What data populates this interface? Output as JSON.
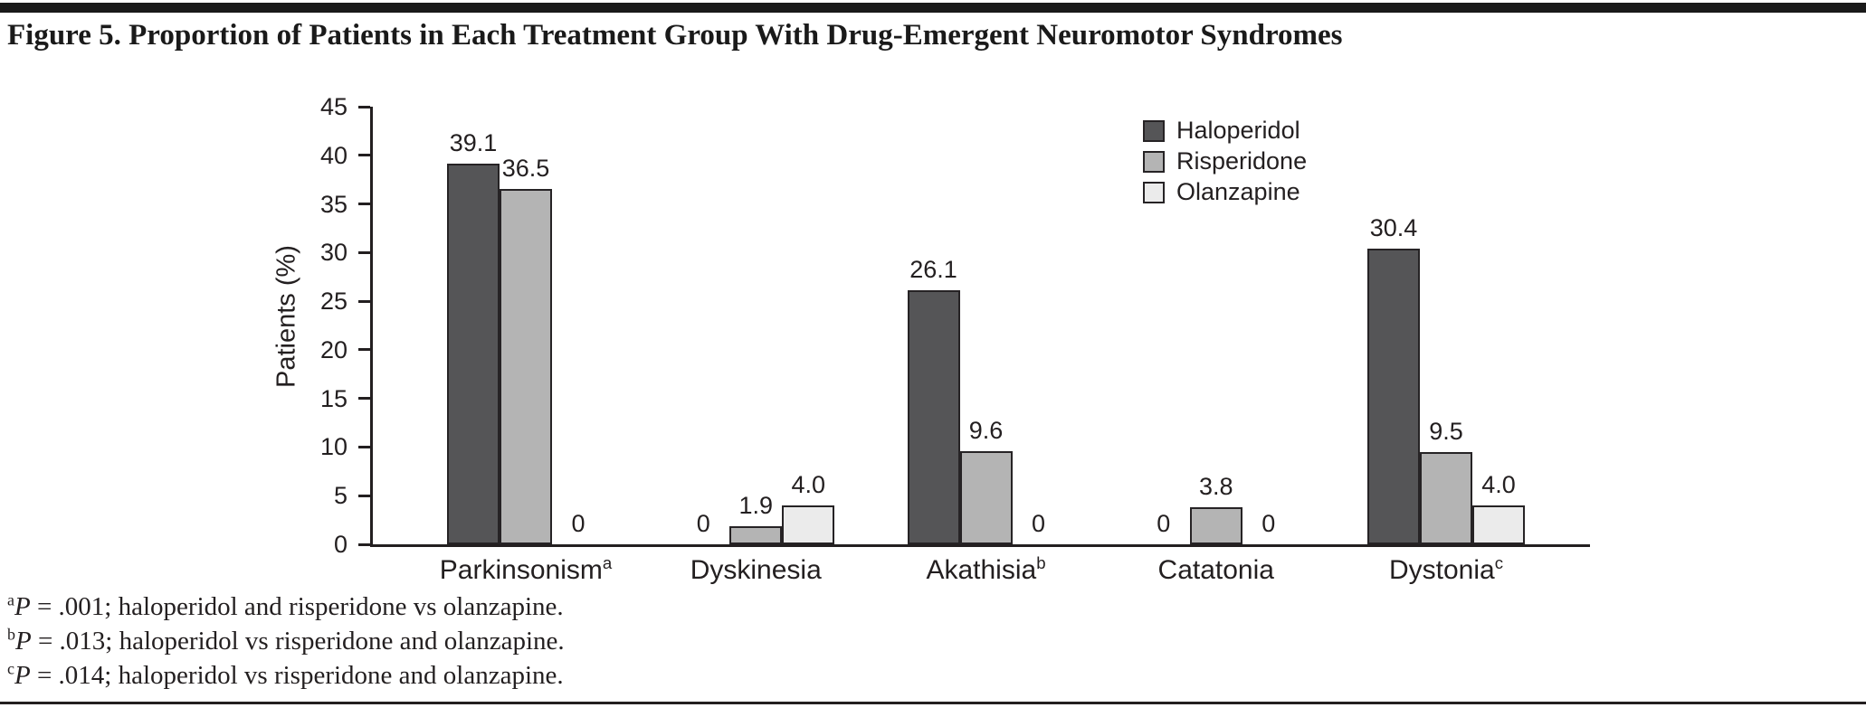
{
  "page": {
    "title": "Figure 5. Proportion of Patients in Each Treatment Group With Drug-Emergent Neuromotor Syndromes"
  },
  "chart_data": {
    "type": "bar",
    "title": "Figure 5. Proportion of Patients in Each Treatment Group With Drug-Emergent Neuromotor Syndromes",
    "xlabel": "",
    "ylabel": "Patients (%)",
    "ylim": [
      0,
      45
    ],
    "yticks": [
      0,
      5,
      10,
      15,
      20,
      25,
      30,
      35,
      40,
      45
    ],
    "grid": false,
    "legend_position": "top-right-inside",
    "categories": [
      {
        "label": "Parkinsonism",
        "sup": "a"
      },
      {
        "label": "Dyskinesia",
        "sup": ""
      },
      {
        "label": "Akathisia",
        "sup": "b"
      },
      {
        "label": "Catatonia",
        "sup": ""
      },
      {
        "label": "Dystonia",
        "sup": "c"
      }
    ],
    "series": [
      {
        "name": "Haloperidol",
        "color": "#555557",
        "values": [
          39.1,
          0,
          26.1,
          0,
          30.4
        ]
      },
      {
        "name": "Risperidone",
        "color": "#b4b4b4",
        "values": [
          36.5,
          1.9,
          9.6,
          3.8,
          9.5
        ]
      },
      {
        "name": "Olanzapine",
        "color": "#ebebeb",
        "values": [
          0,
          4.0,
          0,
          0,
          4.0
        ]
      }
    ]
  },
  "footnotes": [
    {
      "sup": "a",
      "p": "P",
      "rest": " = .001; haloperidol and risperidone vs olanzapine."
    },
    {
      "sup": "b",
      "p": "P",
      "rest": " = .013; haloperidol vs risperidone and olanzapine."
    },
    {
      "sup": "c",
      "p": "P",
      "rest": " = .014; haloperidol vs risperidone and olanzapine."
    }
  ],
  "colors": {
    "text": "#231f20",
    "axis": "#231f20",
    "background": "#ffffff"
  }
}
